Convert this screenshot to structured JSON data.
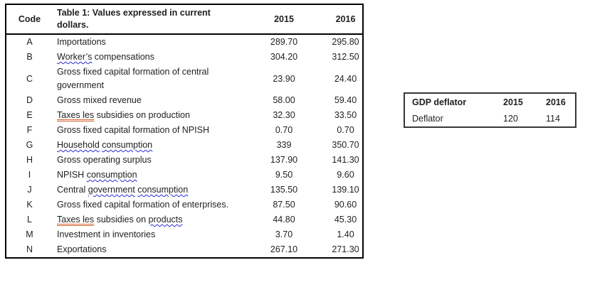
{
  "main_table": {
    "header": {
      "code_label": "Code",
      "title": "Table 1: Values expressed in current dollars.",
      "year1": "2015",
      "year2": "2016"
    },
    "rows": [
      {
        "code": "A",
        "desc": [
          {
            "t": "Importations",
            "m": "none"
          }
        ],
        "y2015": "289.70",
        "y2016": "295.80"
      },
      {
        "code": "B",
        "desc": [
          {
            "t": "Worker’s",
            "m": "spell"
          },
          {
            "t": " compensations",
            "m": "none"
          }
        ],
        "y2015": "304.20",
        "y2016": "312.50"
      },
      {
        "code": "C",
        "desc": [
          {
            "t": "Gross fixed capital formation of central government",
            "m": "none"
          }
        ],
        "y2015": "23.90",
        "y2016": "24.40"
      },
      {
        "code": "D",
        "desc": [
          {
            "t": "Gross mixed revenue",
            "m": "none"
          }
        ],
        "y2015": "58.00",
        "y2016": "59.40"
      },
      {
        "code": "E",
        "desc": [
          {
            "t": "Taxes les",
            "m": "grammar"
          },
          {
            "t": " subsidies on production",
            "m": "none"
          }
        ],
        "y2015": "32.30",
        "y2016": "33.50"
      },
      {
        "code": "F",
        "desc": [
          {
            "t": "Gross fixed capital formation of NPISH",
            "m": "none"
          }
        ],
        "y2015": "0.70",
        "y2016": "0.70"
      },
      {
        "code": "G",
        "desc": [
          {
            "t": "Household",
            "m": "spell"
          },
          {
            "t": " ",
            "m": "none"
          },
          {
            "t": "consumption",
            "m": "spell"
          }
        ],
        "y2015": "339",
        "y2016": "350.70"
      },
      {
        "code": "H",
        "desc": [
          {
            "t": "Gross operating surplus",
            "m": "none"
          }
        ],
        "y2015": "137.90",
        "y2016": "141.30"
      },
      {
        "code": "I",
        "desc": [
          {
            "t": "NPISH ",
            "m": "none"
          },
          {
            "t": "consumption",
            "m": "spell"
          }
        ],
        "y2015": "9.50",
        "y2016": "9.60"
      },
      {
        "code": "J",
        "desc": [
          {
            "t": "Central ",
            "m": "none"
          },
          {
            "t": "government",
            "m": "spell"
          },
          {
            "t": " ",
            "m": "none"
          },
          {
            "t": "consumption",
            "m": "spell"
          }
        ],
        "y2015": "135.50",
        "y2016": "139.10"
      },
      {
        "code": "K",
        "desc": [
          {
            "t": "Gross fixed capital formation of enterprises.",
            "m": "none"
          }
        ],
        "y2015": "87.50",
        "y2016": "90.60"
      },
      {
        "code": "L",
        "desc": [
          {
            "t": "Taxes les",
            "m": "grammar"
          },
          {
            "t": " subsidies on ",
            "m": "none"
          },
          {
            "t": "products",
            "m": "spell"
          }
        ],
        "y2015": "44.80",
        "y2016": "45.30"
      },
      {
        "code": "M",
        "desc": [
          {
            "t": "Investment in inventories",
            "m": "none"
          }
        ],
        "y2015": "3.70",
        "y2016": "1.40"
      },
      {
        "code": "N",
        "desc": [
          {
            "t": "Exportations",
            "m": "none"
          }
        ],
        "y2015": "267.10",
        "y2016": "271.30"
      }
    ]
  },
  "deflator_table": {
    "header": {
      "label": "GDP deflator",
      "year1": "2015",
      "year2": "2016"
    },
    "row": {
      "label": "Deflator",
      "year1": "120",
      "year2": "114"
    }
  },
  "colors": {
    "spell_underline": "#2a2ad4",
    "grammar_underline": "#d4632e",
    "table_border": "#000000",
    "deflator_border": "#383838",
    "text": "#1f1f1f",
    "background": "#ffffff"
  }
}
